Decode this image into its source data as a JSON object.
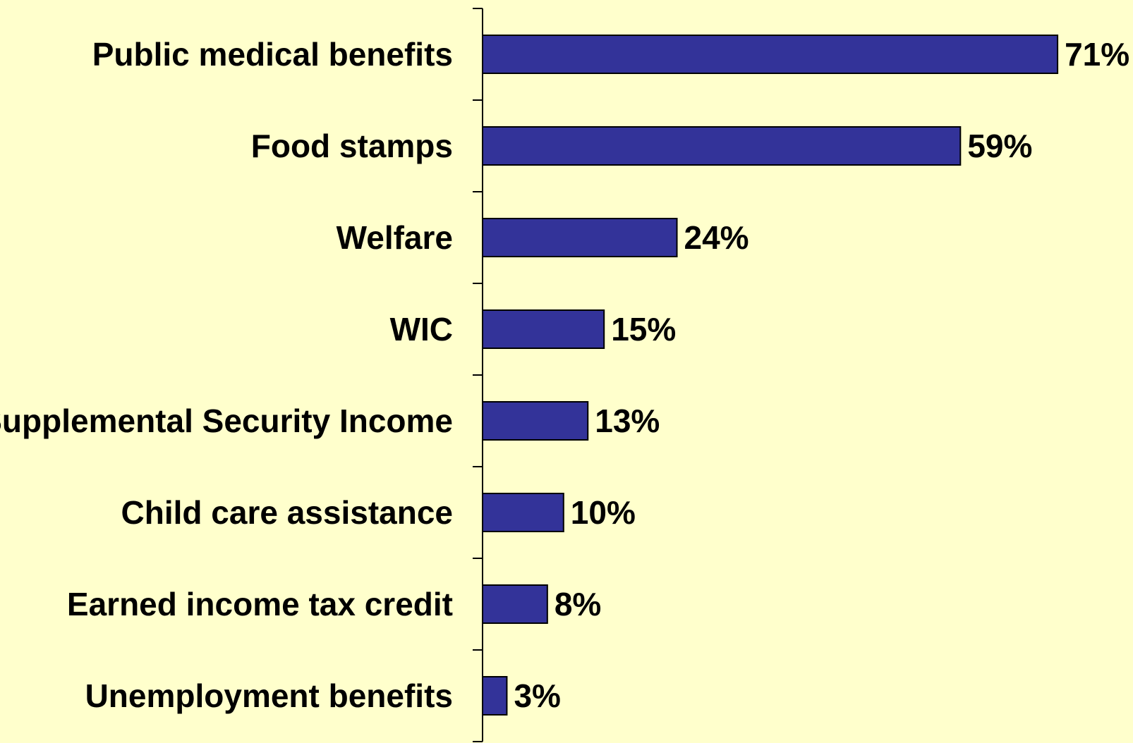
{
  "chart_data": {
    "type": "bar",
    "orientation": "horizontal",
    "categories": [
      "Public medical benefits",
      "Food stamps",
      "Welfare",
      "WIC",
      "Supplemental Security Income",
      "Child care assistance",
      "Earned income tax credit",
      "Unemployment benefits"
    ],
    "values": [
      71,
      59,
      24,
      15,
      13,
      10,
      8,
      3
    ],
    "value_labels": [
      "71%",
      "59%",
      "24%",
      "15%",
      "13%",
      "10%",
      "8%",
      "3%"
    ],
    "title": "",
    "xlabel": "",
    "ylabel": "",
    "xlim": [
      0,
      71
    ],
    "grid": false,
    "legend": "none"
  },
  "colors": {
    "background": "#FFFFCC",
    "bar_fill": "#333399",
    "bar_stroke": "#000000",
    "axis": "#000000",
    "text": "#000000"
  }
}
